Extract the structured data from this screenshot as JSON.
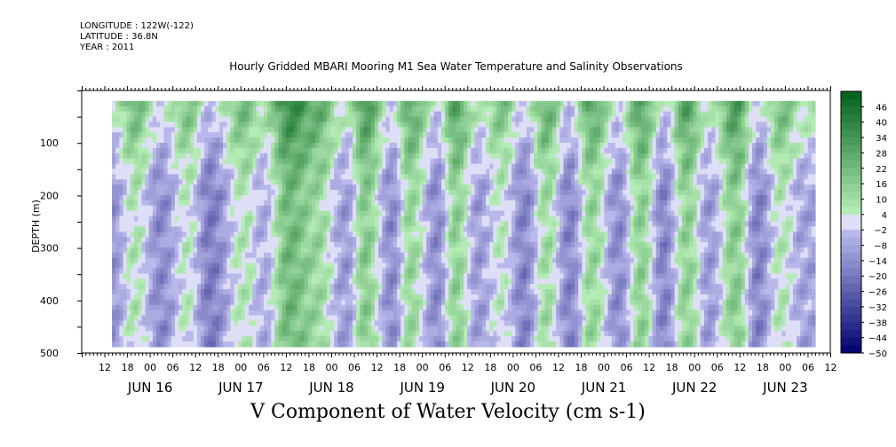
{
  "header": {
    "longitude": "LONGITUDE : 122W(-122)",
    "latitude": "LATITUDE : 36.8N",
    "year": "YEAR : 2011",
    "title": "Hourly Gridded MBARI Mooring M1 Sea Water Temperature and Salinity Observations"
  },
  "chart_data": {
    "type": "heatmap",
    "title": "Hourly Gridded MBARI Mooring M1 Sea Water Temperature and Salinity Observations",
    "xlabel": "V Component of Water Velocity (cm s-1)",
    "ylabel": "DEPTH (m)",
    "x_range": [
      "2011-06-15 06:00",
      "2011-06-23 12:00"
    ],
    "data_extent_x": [
      "2011-06-15 14:00",
      "2011-06-23 08:00"
    ],
    "y_range": [
      0,
      500
    ],
    "y_reversed": true,
    "data_extent_y": [
      20,
      488
    ],
    "y_ticks": [
      100,
      200,
      300,
      400,
      500
    ],
    "x_tick_hours": [
      "12",
      "18",
      "00",
      "06",
      "12",
      "18",
      "00",
      "06",
      "12",
      "18",
      "00",
      "06",
      "12",
      "18",
      "00",
      "06",
      "12",
      "18",
      "00",
      "06",
      "12",
      "18",
      "00",
      "06",
      "12",
      "18",
      "00",
      "06",
      "12",
      "18",
      "00",
      "06",
      "12",
      "18",
      "00",
      "06"
    ],
    "x_day_labels": [
      "JUN 16",
      "JUN 17",
      "JUN 18",
      "JUN 19",
      "JUN 20",
      "JUN 21",
      "JUN 22",
      "JUN 23"
    ],
    "colorbar": {
      "labels": [
        "46",
        "40",
        "34",
        "28",
        "22",
        "16",
        "10",
        "4",
        "-2",
        "-8",
        "-14",
        "-20",
        "-26",
        "-32",
        "-38",
        "-44",
        "-50"
      ],
      "min": -50,
      "max": 52,
      "step": 3
    },
    "cell_grid": {
      "cols": 190,
      "rows": 47
    },
    "velocity_bands": [
      {
        "t": "06-15 14:00",
        "v": -12,
        "note": "left edge, blue"
      },
      {
        "t": "06-15 20:00",
        "v": 6
      },
      {
        "t": "06-16 03:00",
        "v": -14
      },
      {
        "t": "06-16 10:00",
        "v": 4
      },
      {
        "t": "06-16 16:00",
        "v": -18
      },
      {
        "t": "06-17 01:00",
        "v": 6
      },
      {
        "t": "06-17 06:00",
        "v": -6
      },
      {
        "t": "06-17 13:00",
        "v": 22
      },
      {
        "t": "06-17 20:00",
        "v": 12
      },
      {
        "t": "06-18 04:00",
        "v": -10
      },
      {
        "t": "06-18 09:00",
        "v": 16
      },
      {
        "t": "06-18 16:00",
        "v": -14
      },
      {
        "t": "06-18 21:00",
        "v": 12
      },
      {
        "t": "06-19 04:00",
        "v": -14
      },
      {
        "t": "06-19 09:00",
        "v": 14
      },
      {
        "t": "06-19 15:00",
        "v": -10
      },
      {
        "t": "06-19 21:00",
        "v": 4
      },
      {
        "t": "06-20 03:00",
        "v": -16
      },
      {
        "t": "06-20 09:00",
        "v": 10
      },
      {
        "t": "06-20 15:00",
        "v": -16
      },
      {
        "t": "06-20 21:00",
        "v": 12
      },
      {
        "t": "06-21 04:00",
        "v": -14
      },
      {
        "t": "06-21 10:00",
        "v": 14
      },
      {
        "t": "06-21 16:00",
        "v": -16
      },
      {
        "t": "06-21 22:00",
        "v": 14
      },
      {
        "t": "06-22 04:00",
        "v": -10
      },
      {
        "t": "06-22 11:00",
        "v": 16
      },
      {
        "t": "06-22 17:00",
        "v": -16
      },
      {
        "t": "06-22 23:00",
        "v": 6
      },
      {
        "t": "06-23 05:00",
        "v": -8
      }
    ]
  }
}
